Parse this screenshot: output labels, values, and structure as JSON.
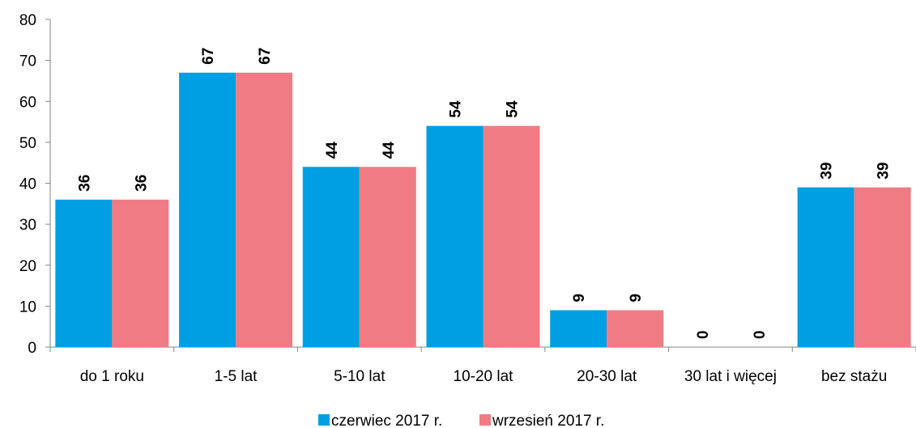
{
  "chart_data": {
    "type": "bar",
    "categories": [
      "do 1 roku",
      "1-5 lat",
      "5-10 lat",
      "10-20 lat",
      "20-30 lat",
      "30 lat i więcej",
      "bez stażu"
    ],
    "series": [
      {
        "name": "czerwiec 2017 r.",
        "values": [
          36,
          67,
          44,
          54,
          9,
          0,
          39
        ],
        "color": "#009fe3"
      },
      {
        "name": "wrzesień 2017 r.",
        "values": [
          36,
          67,
          44,
          54,
          9,
          0,
          39
        ],
        "color": "#f07b84"
      }
    ],
    "title": "",
    "xlabel": "",
    "ylabel": "",
    "ylim": [
      0,
      80
    ],
    "yticks": [
      0,
      10,
      20,
      30,
      40,
      50,
      60,
      70,
      80
    ],
    "grid": false,
    "legend_position": "bottom",
    "data_labels": true,
    "data_label_rotation": "vertical"
  }
}
